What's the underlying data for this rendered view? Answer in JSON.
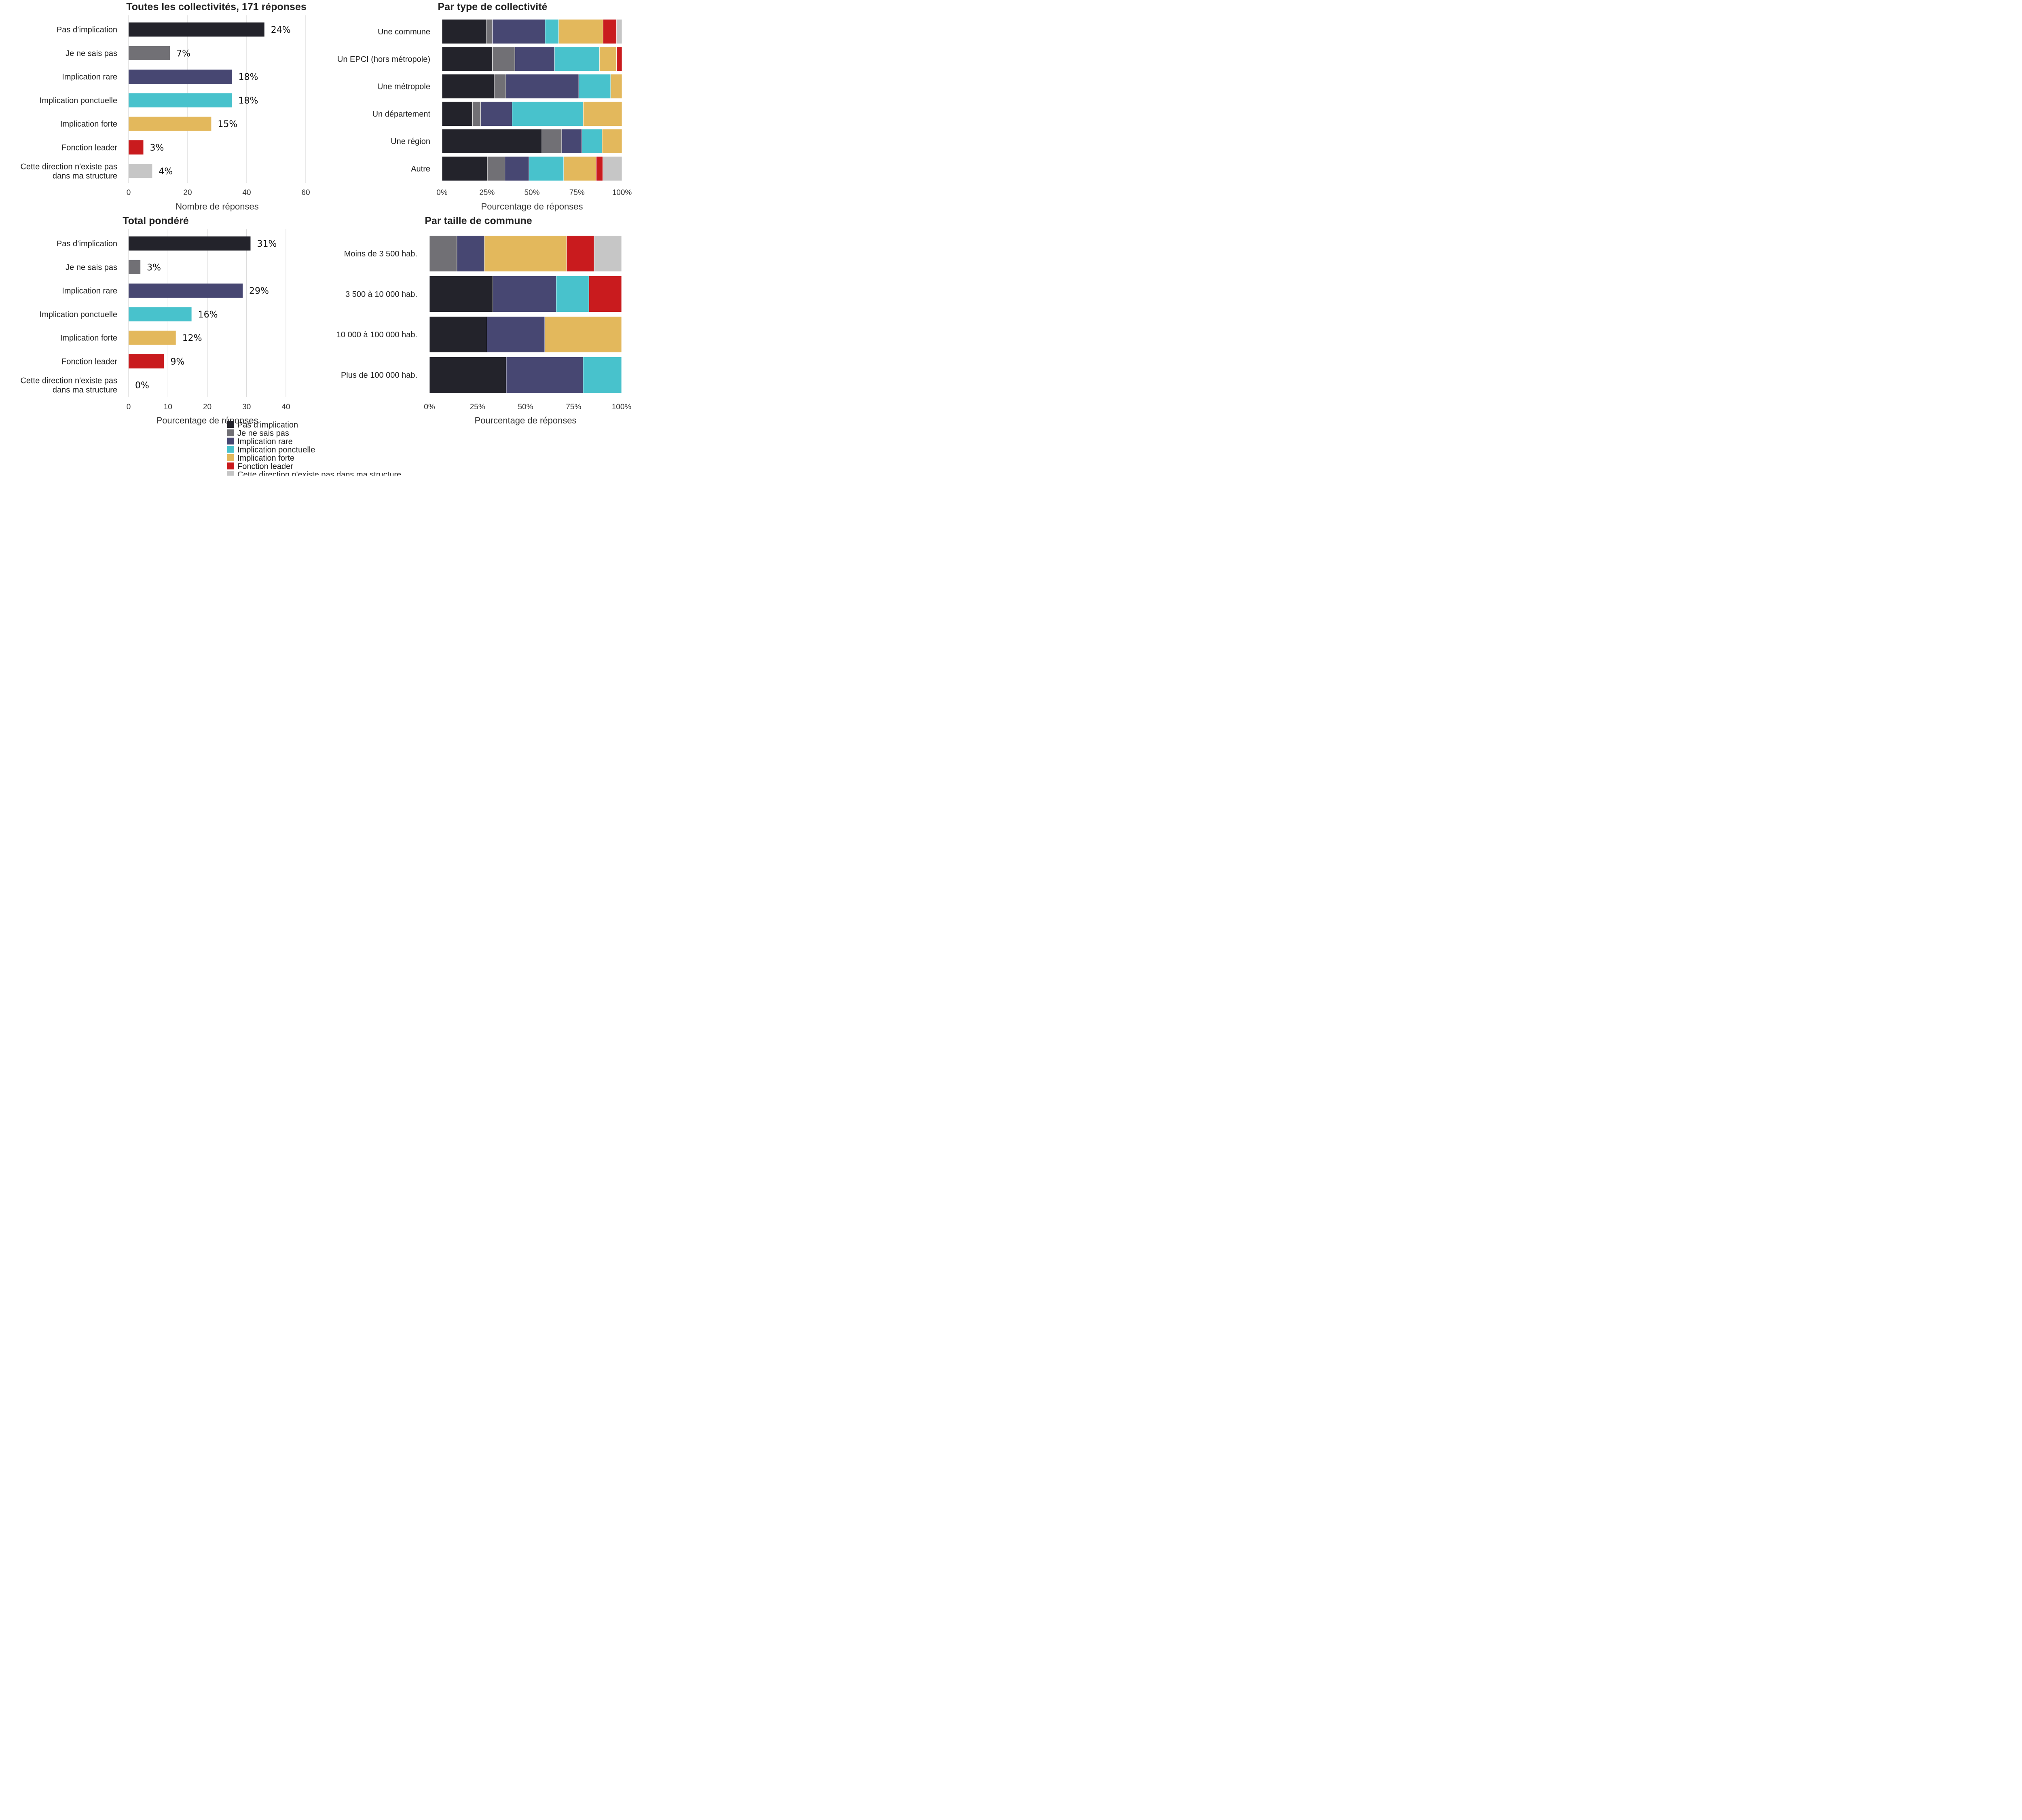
{
  "colors": {
    "Pas d’implication": "#23232b",
    "Je ne sais pas": "#717075",
    "Implication rare": "#474772",
    "Implication ponctuelle": "#48c2cc",
    "Implication forte": "#e3b85c",
    "Fonction leader": "#c91b1e",
    "Cette direction n'existe pas dans ma structure": "#c6c6c6"
  },
  "legend": {
    "items": [
      "Pas d’implication",
      "Je ne sais pas",
      "Implication rare",
      "Implication ponctuelle",
      "Implication forte",
      "Fonction leader",
      "Cette direction n'existe pas dans ma structure"
    ]
  },
  "chart_data": [
    {
      "type": "bar",
      "orientation": "horizontal",
      "title": "Toutes les collectivités, 171 réponses",
      "xlabel": "Nombre de réponses",
      "xlim": [
        0,
        60
      ],
      "xticks": [
        "0",
        "20",
        "40",
        "60"
      ],
      "categories": [
        "Pas d’implication",
        "Je ne sais pas",
        "Implication rare",
        "Implication ponctuelle",
        "Implication forte",
        "Fonction leader",
        "Cette direction n'existe pas dans ma structure"
      ],
      "category_labels": [
        [
          "Pas d’implication"
        ],
        [
          "Je ne sais pas"
        ],
        [
          "Implication rare"
        ],
        [
          "Implication ponctuelle"
        ],
        [
          "Implication forte"
        ],
        [
          "Fonction leader"
        ],
        [
          "Cette direction n'existe pas",
          "dans ma structure"
        ]
      ],
      "values": [
        46,
        14,
        35,
        35,
        28,
        5,
        8
      ],
      "data_labels": [
        "24%",
        "7%",
        "18%",
        "18%",
        "15%",
        "3%",
        "4%"
      ]
    },
    {
      "type": "bar",
      "orientation": "horizontal",
      "stacked": "percent",
      "title": "Par type de collectivité",
      "xlabel": "Pourcentage de réponses",
      "xlim": [
        0,
        100
      ],
      "xticks": [
        "0%",
        "25%",
        "50%",
        "75%",
        "100%"
      ],
      "categories": [
        "Une commune",
        "Un EPCI (hors métropole)",
        "Une métropole",
        "Un département",
        "Une région",
        "Autre"
      ],
      "series": [
        {
          "name": "Pas d’implication",
          "values": [
            24.7,
            28,
            29,
            17,
            55.5,
            25.2
          ]
        },
        {
          "name": "Je ne sais pas",
          "values": [
            3.3,
            12.5,
            6.5,
            4.5,
            11,
            9.8
          ]
        },
        {
          "name": "Implication rare",
          "values": [
            29.3,
            22,
            40.5,
            17.5,
            11.2,
            13.3
          ]
        },
        {
          "name": "Implication ponctuelle",
          "values": [
            7.5,
            25,
            17.7,
            39.5,
            11.3,
            19.3
          ]
        },
        {
          "name": "Implication forte",
          "values": [
            24.7,
            9.5,
            6.3,
            21.5,
            11,
            18.1
          ]
        },
        {
          "name": "Fonction leader",
          "values": [
            7.5,
            3,
            0,
            0,
            0,
            3.6
          ]
        },
        {
          "name": "Cette direction n'existe pas dans ma structure",
          "values": [
            3,
            0,
            0,
            0,
            0,
            10.7
          ]
        }
      ]
    },
    {
      "type": "bar",
      "orientation": "horizontal",
      "title": "Total pondéré",
      "xlabel": "Pourcentage de réponses",
      "xlim": [
        0,
        40
      ],
      "xticks": [
        "0",
        "10",
        "20",
        "30",
        "40"
      ],
      "categories": [
        "Pas d’implication",
        "Je ne sais pas",
        "Implication rare",
        "Implication ponctuelle",
        "Implication forte",
        "Fonction leader",
        "Cette direction n'existe pas dans ma structure"
      ],
      "category_labels": [
        [
          "Pas d’implication"
        ],
        [
          "Je ne sais pas"
        ],
        [
          "Implication rare"
        ],
        [
          "Implication ponctuelle"
        ],
        [
          "Implication forte"
        ],
        [
          "Fonction leader"
        ],
        [
          "Cette direction n'existe pas",
          "dans ma structure"
        ]
      ],
      "values": [
        31,
        3,
        29,
        16,
        12,
        9,
        0
      ],
      "data_labels": [
        "31%",
        "3%",
        "29%",
        "16%",
        "12%",
        "9%",
        "0%"
      ]
    },
    {
      "type": "bar",
      "orientation": "horizontal",
      "stacked": "percent",
      "title": "Par taille de commune",
      "xlabel": "Pourcentage de réponses",
      "xlim": [
        0,
        100
      ],
      "xticks": [
        "0%",
        "25%",
        "50%",
        "75%",
        "100%"
      ],
      "categories": [
        "Moins de 3 500 hab.",
        "3 500 à 10 000 hab.",
        "10 000 à 100 000 hab.",
        "Plus de 100 000 hab."
      ],
      "series": [
        {
          "name": "Pas d’implication",
          "values": [
            0,
            33,
            30,
            40
          ]
        },
        {
          "name": "Je ne sais pas",
          "values": [
            14.3,
            0,
            0,
            0
          ]
        },
        {
          "name": "Implication rare",
          "values": [
            14.3,
            33,
            30,
            40
          ]
        },
        {
          "name": "Implication ponctuelle",
          "values": [
            0,
            17,
            0,
            20
          ]
        },
        {
          "name": "Implication forte",
          "values": [
            42.8,
            0,
            40,
            0
          ]
        },
        {
          "name": "Fonction leader",
          "values": [
            14.3,
            17,
            0,
            0
          ]
        },
        {
          "name": "Cette direction n'existe pas dans ma structure",
          "values": [
            14.3,
            0,
            0,
            0
          ]
        }
      ]
    }
  ]
}
